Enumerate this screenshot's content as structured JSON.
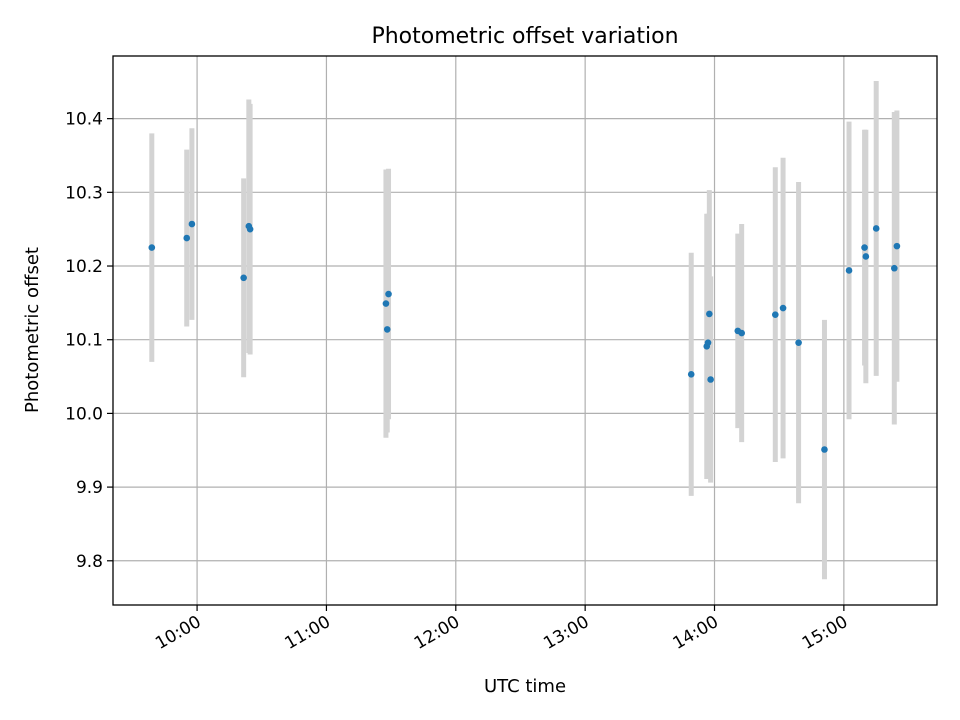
{
  "chart_data": {
    "type": "scatter",
    "title": "Photometric offset variation",
    "xlabel": "UTC time",
    "ylabel": "Photometric offset",
    "grid": true,
    "x_unit": "hours (UTC)",
    "xlim": [
      9.35,
      15.72
    ],
    "ylim": [
      9.74,
      10.485
    ],
    "xticks": [
      {
        "value": 10,
        "label": "10:00"
      },
      {
        "value": 11,
        "label": "11:00"
      },
      {
        "value": 12,
        "label": "12:00"
      },
      {
        "value": 13,
        "label": "13:00"
      },
      {
        "value": 14,
        "label": "14:00"
      },
      {
        "value": 15,
        "label": "15:00"
      }
    ],
    "yticks": [
      {
        "value": 9.8,
        "label": "9.8"
      },
      {
        "value": 9.9,
        "label": "9.9"
      },
      {
        "value": 10.0,
        "label": "10.0"
      },
      {
        "value": 10.1,
        "label": "10.1"
      },
      {
        "value": 10.2,
        "label": "10.2"
      },
      {
        "value": 10.3,
        "label": "10.3"
      },
      {
        "value": 10.4,
        "label": "10.4"
      }
    ],
    "marker_color": "#1f77b4",
    "errorbar_color": "#d3d3d3",
    "series": [
      {
        "name": "offset",
        "points": [
          {
            "x": 9.65,
            "y": 10.225,
            "yerr": 0.155
          },
          {
            "x": 9.92,
            "y": 10.238,
            "yerr": 0.12
          },
          {
            "x": 9.96,
            "y": 10.257,
            "yerr": 0.13
          },
          {
            "x": 10.36,
            "y": 10.184,
            "yerr": 0.135
          },
          {
            "x": 10.4,
            "y": 10.254,
            "yerr": 0.172
          },
          {
            "x": 10.41,
            "y": 10.25,
            "yerr": 0.17
          },
          {
            "x": 11.46,
            "y": 10.149,
            "yerr": 0.182
          },
          {
            "x": 11.47,
            "y": 10.114,
            "yerr": 0.14
          },
          {
            "x": 11.48,
            "y": 10.162,
            "yerr": 0.17
          },
          {
            "x": 13.82,
            "y": 10.053,
            "yerr": 0.165
          },
          {
            "x": 13.94,
            "y": 10.091,
            "yerr": 0.18
          },
          {
            "x": 13.95,
            "y": 10.096,
            "yerr": 0.175
          },
          {
            "x": 13.96,
            "y": 10.135,
            "yerr": 0.168
          },
          {
            "x": 13.97,
            "y": 10.046,
            "yerr": 0.14
          },
          {
            "x": 14.18,
            "y": 10.112,
            "yerr": 0.132
          },
          {
            "x": 14.21,
            "y": 10.109,
            "yerr": 0.148
          },
          {
            "x": 14.47,
            "y": 10.134,
            "yerr": 0.2
          },
          {
            "x": 14.53,
            "y": 10.143,
            "yerr": 0.204
          },
          {
            "x": 14.65,
            "y": 10.096,
            "yerr": 0.218
          },
          {
            "x": 14.85,
            "y": 9.951,
            "yerr": 0.176
          },
          {
            "x": 15.04,
            "y": 10.194,
            "yerr": 0.202
          },
          {
            "x": 15.16,
            "y": 10.225,
            "yerr": 0.16
          },
          {
            "x": 15.17,
            "y": 10.213,
            "yerr": 0.172
          },
          {
            "x": 15.25,
            "y": 10.251,
            "yerr": 0.2
          },
          {
            "x": 15.39,
            "y": 10.197,
            "yerr": 0.212
          },
          {
            "x": 15.41,
            "y": 10.227,
            "yerr": 0.184
          }
        ]
      }
    ]
  }
}
